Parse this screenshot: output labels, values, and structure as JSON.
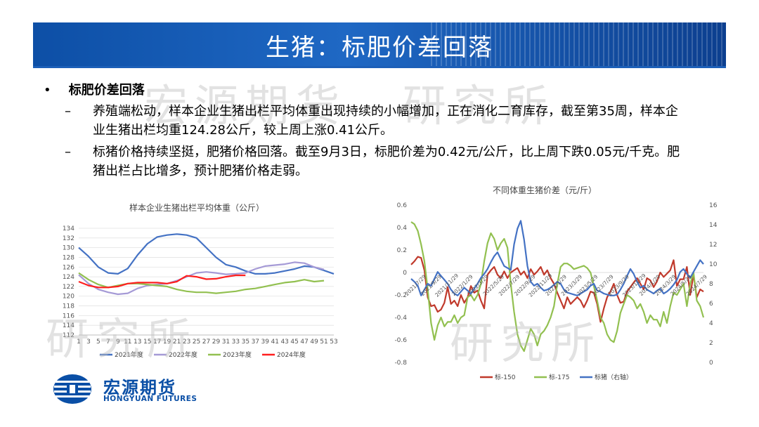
{
  "title": "生猪：标肥价差回落",
  "bullet": "标肥价差回落",
  "points": [
    "养殖端松动，样本企业生猪出栏平均体重出现持续的小幅增加，正在消化二育库存，截至第35周，样本企业生猪出栏均重124.28公斤，较上周上涨0.41公斤。",
    "标猪价格持续坚挺，肥猪价格回落。截至9月3日，标肥价差为0.42元/公斤，比上周下跌0.05元/千克。肥猪出栏占比增多，预计肥猪价格走弱。"
  ],
  "watermark": {
    "line1": "宏源期货",
    "line2": "研究所"
  },
  "logo": {
    "cn": "宏源期货",
    "en": "HONGYUAN FUTURES"
  },
  "chart_data": [
    {
      "type": "line",
      "title": "样本企业生猪出栏平均体重（公斤）",
      "xlabel": "",
      "ylabel": "",
      "x": [
        1,
        3,
        5,
        7,
        9,
        11,
        13,
        15,
        17,
        19,
        21,
        23,
        25,
        27,
        29,
        31,
        33,
        35,
        37,
        39,
        41,
        43,
        45,
        47,
        49,
        51,
        53
      ],
      "x_ticks": [
        "1",
        "3",
        "5",
        "7",
        "9",
        "11",
        "13",
        "15",
        "17",
        "19",
        "21",
        "23",
        "25",
        "27",
        "29",
        "31",
        "33",
        "35",
        "37",
        "39",
        "41",
        "43",
        "45",
        "47",
        "49",
        "51",
        "53"
      ],
      "ylim": [
        112,
        134
      ],
      "y_ticks": [
        "112",
        "114",
        "116",
        "118",
        "120",
        "122",
        "124",
        "126",
        "128",
        "130",
        "132",
        "134"
      ],
      "legend_position": "bottom",
      "series": [
        {
          "name": "2021年度",
          "color": "#4472c4",
          "values": [
            130.0,
            128.2,
            126.0,
            124.8,
            124.6,
            125.7,
            128.5,
            130.8,
            132.2,
            132.6,
            132.8,
            132.6,
            132.0,
            130.0,
            128.0,
            126.5,
            126.0,
            125.2,
            124.6,
            124.6,
            124.8,
            125.2,
            125.6,
            126.2,
            126.0,
            125.3,
            124.6
          ]
        },
        {
          "name": "2022年度",
          "color": "#a59ad6",
          "values": [
            124.4,
            122.6,
            121.4,
            120.8,
            120.4,
            120.6,
            121.6,
            122.2,
            122.4,
            122.6,
            123.2,
            124.0,
            124.8,
            125.0,
            124.8,
            124.5,
            124.6,
            124.8,
            125.6,
            126.2,
            126.4,
            126.6,
            127.0,
            126.8,
            126.0,
            125.5,
            null
          ]
        },
        {
          "name": "2023年度",
          "color": "#92c050",
          "values": [
            124.8,
            123.4,
            122.4,
            121.8,
            122.2,
            122.6,
            122.6,
            122.4,
            122.2,
            122.0,
            121.4,
            121.0,
            120.8,
            120.8,
            120.6,
            120.8,
            121.0,
            121.4,
            121.6,
            122.0,
            122.4,
            122.8,
            123.0,
            123.4,
            123.0,
            123.2,
            null
          ]
        },
        {
          "name": "2024年度",
          "color": "#ff1f1f",
          "values": [
            123.0,
            122.2,
            121.8,
            121.8,
            122.0,
            122.6,
            122.8,
            122.8,
            122.8,
            122.6,
            123.0,
            124.2,
            124.0,
            123.5,
            123.6,
            124.0,
            124.3,
            124.3,
            null,
            null,
            null,
            null,
            null,
            null,
            null,
            null,
            null
          ]
        }
      ]
    },
    {
      "type": "line",
      "title": "不同体重生猪价差（元/斤）",
      "xlabel": "",
      "ylabel": "",
      "ylim": [
        -0.8,
        0.6
      ],
      "y_ticks": [
        "-0.8",
        "-0.6",
        "-0.4",
        "-0.2",
        "0",
        "0.2",
        "0.4",
        "0.6"
      ],
      "y2lim": [
        0,
        16
      ],
      "y2_ticks": [
        "0",
        "2",
        "4",
        "6",
        "8",
        "10",
        "12",
        "14",
        "16"
      ],
      "x_ticks": [
        "2021/7/29",
        "2021/9/29",
        "2021/11/29",
        "2022/1/29",
        "2022/3/29",
        "2022/5/29",
        "2022/7/29",
        "2022/9/29",
        "2022/11/29",
        "2023/1/29",
        "2023/3/29",
        "2023/5/29",
        "2023/7/29",
        "2023/9/29",
        "2023/11/29",
        "2024/1/29",
        "2024/3/29",
        "2024/5/29",
        "2024/7/29"
      ],
      "legend_position": "bottom",
      "series": [
        {
          "name": "标-150",
          "color": "#c0392b",
          "axis": "left",
          "values": [
            0.07,
            0.1,
            0.14,
            0.13,
            0.02,
            -0.22,
            -0.3,
            -0.29,
            -0.35,
            -0.33,
            -0.27,
            -0.13,
            -0.28,
            -0.25,
            -0.3,
            -0.2,
            -0.27,
            -0.22,
            -0.12,
            -0.18,
            -0.16,
            -0.25,
            -0.32,
            -0.02,
            0.02,
            0.05,
            -0.02,
            -0.05,
            0.01,
            -0.05,
            0.0,
            0.02,
            0.04,
            -0.02,
            0.01,
            -0.05,
            0.03,
            -0.02,
            0.01,
            0.05,
            -0.02,
            0.02,
            -0.05,
            -0.1,
            -0.18,
            -0.25,
            -0.32,
            -0.22,
            -0.28,
            -0.25,
            -0.22,
            -0.25,
            -0.31,
            -0.25,
            -0.17,
            -0.18,
            -0.28,
            -0.44,
            -0.32,
            -0.22,
            -0.17,
            -0.1,
            -0.2,
            -0.27,
            -0.26,
            -0.17,
            -0.13,
            -0.09,
            -0.05,
            -0.1,
            -0.15,
            -0.05,
            -0.07,
            -0.13,
            -0.08,
            0.0,
            -0.04,
            -0.01,
            0.02,
            0.11,
            -0.12,
            -0.06,
            -0.06,
            0.05,
            -0.2,
            -0.02,
            -0.22,
            -0.15,
            -0.17
          ]
        },
        {
          "name": "标-175",
          "color": "#92c050",
          "axis": "left",
          "values": [
            0.45,
            0.43,
            0.37,
            0.25,
            0.1,
            -0.15,
            -0.45,
            -0.6,
            -0.47,
            -0.4,
            -0.48,
            -0.44,
            -0.44,
            -0.38,
            -0.45,
            -0.4,
            -0.38,
            -0.22,
            -0.2,
            -0.25,
            -0.2,
            -0.1,
            0.1,
            0.26,
            0.35,
            0.3,
            0.2,
            0.26,
            0.3,
            0.22,
            -0.1,
            -0.35,
            -0.55,
            -0.65,
            -0.7,
            -0.6,
            -0.5,
            -0.55,
            -0.65,
            -0.55,
            -0.52,
            -0.47,
            -0.4,
            -0.3,
            -0.1,
            0.05,
            0.08,
            0.08,
            0.06,
            0.03,
            0.04,
            0.05,
            0.06,
            0.04,
            0.0,
            -0.12,
            -0.25,
            -0.4,
            -0.45,
            -0.55,
            -0.6,
            -0.62,
            -0.52,
            -0.36,
            -0.28,
            -0.2,
            -0.22,
            -0.25,
            -0.32,
            -0.28,
            -0.35,
            -0.45,
            -0.38,
            -0.42,
            -0.42,
            -0.48,
            -0.35,
            -0.45,
            -0.3,
            -0.18,
            -0.2,
            -0.15,
            -0.1,
            -0.3,
            -0.1,
            0.0,
            -0.25,
            -0.3,
            -0.4
          ]
        },
        {
          "name": "标猪（右轴）",
          "color": "#4472c4",
          "axis": "right",
          "values": [
            8.5,
            8.2,
            7.8,
            6.8,
            7.4,
            8.0,
            7.8,
            8.5,
            9.2,
            8.8,
            8.4,
            8.0,
            7.4,
            7.0,
            6.8,
            7.2,
            7.6,
            7.3,
            7.0,
            7.5,
            8.0,
            8.6,
            9.0,
            9.5,
            10.2,
            10.8,
            11.2,
            10.5,
            9.8,
            9.6,
            9.4,
            12.0,
            13.6,
            14.4,
            12.5,
            9.8,
            8.2,
            7.8,
            8.0,
            7.6,
            7.3,
            7.4,
            7.6,
            7.9,
            8.2,
            8.0,
            7.4,
            7.1,
            7.0,
            6.9,
            6.8,
            7.0,
            7.2,
            7.4,
            7.8,
            8.0,
            7.3,
            7.2,
            7.0,
            6.9,
            6.8,
            6.8,
            6.9,
            7.4,
            8.0,
            8.8,
            9.5,
            9.0,
            8.2,
            7.6,
            7.8,
            7.4,
            7.2,
            7.0,
            7.3,
            7.5,
            7.0,
            7.2,
            7.5,
            7.9,
            8.4,
            9.2,
            9.5,
            9.0,
            8.6,
            9.2,
            9.8,
            10.4,
            10.0
          ]
        }
      ]
    }
  ]
}
